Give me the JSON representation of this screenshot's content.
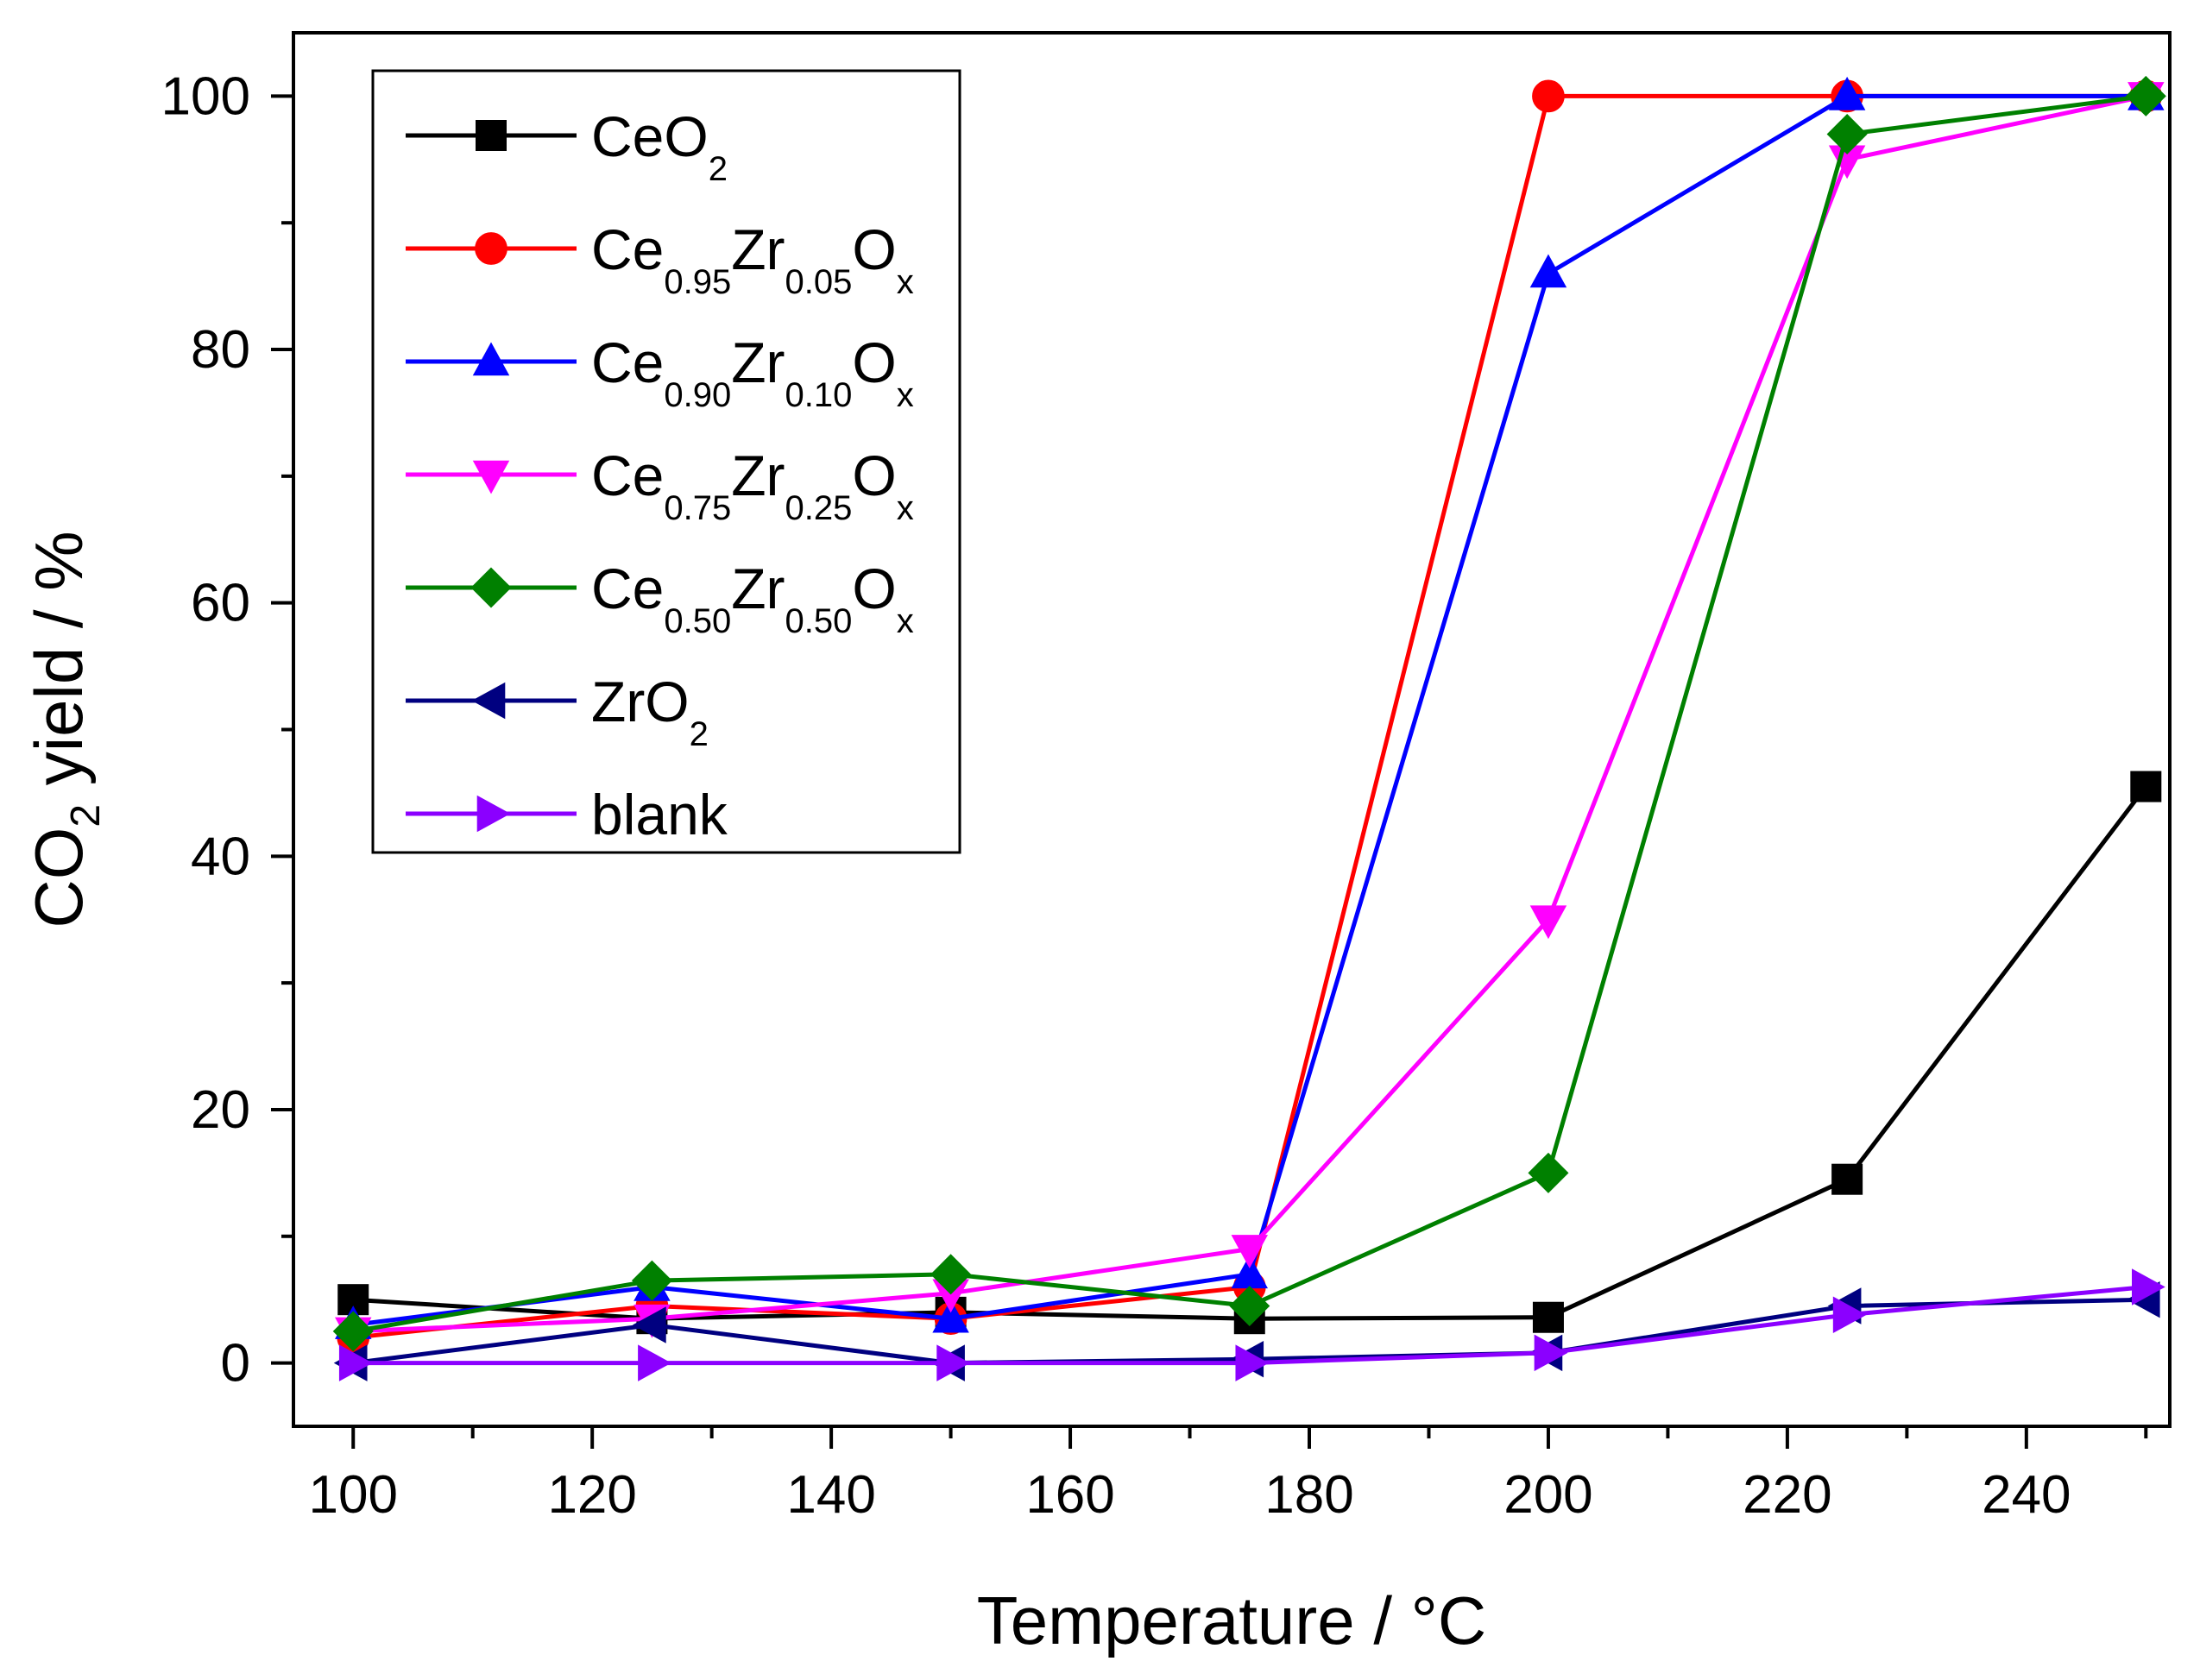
{
  "chart_data": {
    "type": "line",
    "title": "",
    "xlabel": "Temperature / °C",
    "ylabel_parts": [
      "CO",
      "2",
      " yield / %"
    ],
    "xlim": [
      95,
      252
    ],
    "ylim": [
      -5,
      105
    ],
    "xticks": [
      100,
      120,
      140,
      160,
      180,
      200,
      220,
      240
    ],
    "xtick_labels": [
      "100",
      "120",
      "140",
      "160",
      "180",
      "200",
      "220",
      "240"
    ],
    "yticks": [
      0,
      20,
      40,
      60,
      80,
      100
    ],
    "ytick_labels": [
      "0",
      "20",
      "40",
      "60",
      "80",
      "100"
    ],
    "x": [
      100,
      125,
      150,
      175,
      200,
      225,
      250
    ],
    "legend_position": "top-left",
    "series": [
      {
        "name": "CeO2",
        "label_parts": [
          [
            "Ce",
            ""
          ],
          [
            "O",
            "2"
          ]
        ],
        "color": "#000000",
        "marker": "square",
        "values": [
          5,
          3.5,
          4,
          3.5,
          3.6,
          14.5,
          45.5
        ]
      },
      {
        "name": "Ce0.95Zr0.05Ox",
        "label_parts": [
          [
            "Ce",
            "0.95"
          ],
          [
            "Zr",
            "0.05"
          ],
          [
            "O",
            "x"
          ]
        ],
        "color": "#ff0000",
        "marker": "circle",
        "values": [
          2,
          4.5,
          3.5,
          6,
          100,
          100,
          100
        ]
      },
      {
        "name": "Ce0.90Zr0.10Ox",
        "label_parts": [
          [
            "Ce",
            "0.90"
          ],
          [
            "Zr",
            "0.10"
          ],
          [
            "O",
            "x"
          ]
        ],
        "color": "#0000ff",
        "marker": "triangle-up",
        "values": [
          3,
          6,
          3.5,
          7,
          86,
          100,
          100
        ]
      },
      {
        "name": "Ce0.75Zr0.25Ox",
        "label_parts": [
          [
            "Ce",
            "0.75"
          ],
          [
            "Zr",
            "0.25"
          ],
          [
            "O",
            "x"
          ]
        ],
        "color": "#ff00ff",
        "marker": "triangle-down",
        "values": [
          2.5,
          3.5,
          5.5,
          9,
          35,
          95,
          100
        ]
      },
      {
        "name": "Ce0.50Zr0.50Ox",
        "label_parts": [
          [
            "Ce",
            "0.50"
          ],
          [
            "Zr",
            "0.50"
          ],
          [
            "O",
            "x"
          ]
        ],
        "color": "#008000",
        "marker": "diamond",
        "values": [
          2.5,
          6.5,
          7,
          4.5,
          15,
          97,
          100
        ]
      },
      {
        "name": "ZrO2",
        "label_parts": [
          [
            "Zr",
            ""
          ],
          [
            "O",
            "2"
          ]
        ],
        "color": "#000080",
        "marker": "triangle-left",
        "values": [
          0,
          3,
          0,
          0.3,
          0.8,
          4.5,
          5
        ]
      },
      {
        "name": "blank",
        "label_parts": [
          [
            "blank",
            ""
          ]
        ],
        "color": "#8b00ff",
        "marker": "triangle-right",
        "values": [
          0,
          0,
          0,
          0,
          0.8,
          3.8,
          6
        ]
      }
    ]
  }
}
